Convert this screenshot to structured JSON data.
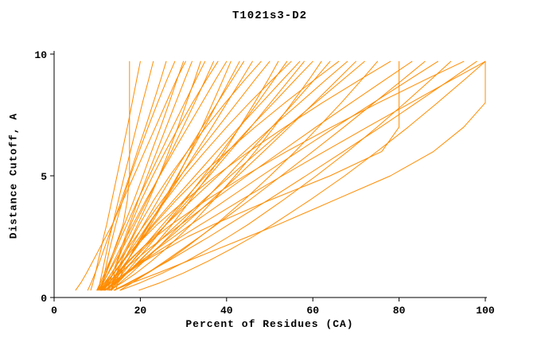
{
  "chart_data": {
    "type": "line",
    "title": "T1021s3-D2",
    "xlabel": "Percent of Residues (CA)",
    "ylabel": "Distance Cutoff, A",
    "xlim": [
      0,
      100
    ],
    "ylim": [
      0,
      10
    ],
    "x_ticks": [
      0,
      20,
      40,
      60,
      80,
      100
    ],
    "y_ticks": [
      0,
      5,
      10
    ],
    "grid": false,
    "legend": "none",
    "line_color": "#ff8c00",
    "axis_color": "#000000",
    "y_samples": [
      0.3,
      0.6,
      1.0,
      1.5,
      2.0,
      2.5,
      3.0,
      4.0,
      5.0,
      6.0,
      7.0,
      8.0,
      9.0,
      9.7
    ],
    "series": [
      {
        "xs": [
          10,
          11,
          12,
          13,
          14,
          15,
          16,
          17,
          17.5,
          17.5,
          17.5,
          17.5,
          17.5,
          17.5
        ]
      },
      {
        "xs": [
          8.5,
          9,
          9.6,
          10.2,
          10.9,
          11.5,
          12.2,
          13.4,
          14.6,
          15.8,
          17,
          18.1,
          19.2,
          20
        ]
      },
      {
        "xs": [
          10.3,
          10.6,
          11.1,
          11.7,
          12.3,
          12.9,
          13.6,
          14.9,
          16.3,
          17.7,
          19.1,
          20.5,
          22,
          23
        ]
      },
      {
        "xs": [
          7.8,
          8.6,
          9.5,
          10.6,
          11.6,
          12.6,
          13.6,
          15.6,
          17.5,
          19.3,
          21.2,
          23,
          24.8,
          26
        ]
      },
      {
        "xs": [
          11.1,
          11.3,
          11.7,
          12.3,
          12.9,
          13.6,
          14.3,
          15.9,
          17.7,
          19.7,
          21.8,
          24,
          26.3,
          28
        ]
      },
      {
        "xs": [
          9.9,
          10.7,
          11.7,
          12.9,
          14.1,
          15.2,
          16.3,
          18.5,
          20.6,
          22.6,
          24.7,
          26.7,
          28.6,
          30
        ]
      },
      {
        "xs": [
          12.4,
          12.9,
          13.6,
          14.6,
          15.5,
          16.5,
          17.5,
          19.5,
          21.6,
          23.8,
          26,
          28.2,
          30.4,
          32
        ]
      },
      {
        "xs": [
          10.3,
          11.7,
          13.3,
          15.1,
          16.6,
          18.1,
          19.4,
          22,
          24.4,
          26.6,
          28.7,
          30.7,
          32.7,
          34
        ]
      },
      {
        "xs": [
          10.6,
          11.2,
          12.1,
          13.2,
          14.4,
          15.6,
          16.9,
          19.4,
          22.1,
          24.8,
          27.5,
          30.3,
          33,
          35
        ]
      },
      {
        "xs": [
          10.2,
          11.3,
          12.6,
          14.2,
          15.8,
          17.3,
          18.7,
          21.6,
          24.4,
          27.2,
          29.9,
          32.6,
          35.2,
          37
        ]
      },
      {
        "xs": [
          13.2,
          13.5,
          14,
          14.8,
          15.8,
          16.8,
          17.8,
          20.2,
          22.9,
          25.8,
          28.9,
          32.1,
          35.5,
          38
        ]
      },
      {
        "xs": [
          10.7,
          11.4,
          12.5,
          13.9,
          15.3,
          16.8,
          18.3,
          21.3,
          24.5,
          27.7,
          31,
          34.3,
          37.6,
          40
        ]
      },
      {
        "xs": [
          10.9,
          12.7,
          14.7,
          16.9,
          18.9,
          20.8,
          22.5,
          25.7,
          28.8,
          31.6,
          34.3,
          36.8,
          39.3,
          41
        ]
      },
      {
        "xs": [
          12.4,
          13.6,
          15.2,
          17,
          18.7,
          20.4,
          22.1,
          25.4,
          28.6,
          31.8,
          34.9,
          37.9,
          40.9,
          43
        ]
      },
      {
        "xs": [
          12.7,
          13.5,
          14.6,
          16.1,
          17.6,
          19.2,
          20.8,
          24.1,
          27.4,
          30.9,
          34.4,
          37.9,
          41.5,
          44
        ]
      },
      {
        "xs": [
          10.6,
          12,
          13.8,
          15.9,
          17.9,
          19.9,
          21.8,
          25.7,
          29.4,
          33,
          36.6,
          40.1,
          43.6,
          46
        ]
      },
      {
        "xs": [
          13.3,
          13.7,
          14.5,
          15.6,
          16.9,
          18.3,
          19.8,
          23.1,
          26.8,
          30.9,
          35.2,
          39.7,
          44.5,
          48
        ]
      },
      {
        "xs": [
          10.9,
          11.9,
          13.3,
          15.2,
          17,
          19,
          21,
          25.1,
          29.3,
          33.6,
          38,
          42.4,
          46.8,
          50
        ]
      },
      {
        "xs": [
          11.9,
          14.3,
          17,
          19.9,
          22.6,
          25,
          27.4,
          31.6,
          35.7,
          39.5,
          43,
          46.5,
          49.8,
          52
        ]
      },
      {
        "xs": [
          12.9,
          14.5,
          16.6,
          19,
          21.4,
          23.7,
          25.9,
          30.4,
          34.7,
          38.9,
          43.1,
          47.2,
          51.2,
          54
        ]
      },
      {
        "xs": [
          14.3,
          14.8,
          15.7,
          17,
          18.5,
          20.2,
          21.9,
          25.9,
          30.2,
          35,
          40,
          45.3,
          50.9,
          55
        ]
      },
      {
        "xs": [
          11,
          12.2,
          13.9,
          16.1,
          18.3,
          20.6,
          22.9,
          27.7,
          32.7,
          37.7,
          42.9,
          48.1,
          53.3,
          57
        ]
      },
      {
        "xs": [
          11.2,
          13,
          15.4,
          18.2,
          20.8,
          23.5,
          26,
          31.1,
          36,
          40.8,
          45.6,
          50.2,
          54.8,
          58
        ]
      },
      {
        "xs": [
          13.1,
          14.3,
          15.9,
          18.2,
          20.4,
          22.8,
          25.2,
          30.1,
          35.1,
          40.3,
          45.5,
          50.9,
          56.2,
          60
        ]
      },
      {
        "xs": [
          12.8,
          15.7,
          19,
          22.6,
          25.9,
          28.9,
          31.8,
          37,
          42,
          46.6,
          51,
          55.2,
          59.3,
          62
        ]
      },
      {
        "xs": [
          13.3,
          15.3,
          17.9,
          20.9,
          23.8,
          26.6,
          29.4,
          34.9,
          40.2,
          45.4,
          50.5,
          55.6,
          60.6,
          64
        ]
      },
      {
        "xs": [
          13.4,
          14.1,
          15.2,
          16.9,
          18.8,
          20.9,
          23.2,
          28.3,
          33.9,
          40.1,
          46.6,
          53.5,
          60.8,
          66
        ]
      },
      {
        "xs": [
          11.3,
          12.7,
          14.8,
          17.5,
          20.2,
          23.1,
          26,
          31.9,
          38,
          44.2,
          50.5,
          57,
          63.4,
          68
        ]
      },
      {
        "xs": [
          11.7,
          14,
          16.9,
          20.4,
          23.7,
          27,
          30.2,
          36.5,
          42.6,
          48.6,
          54.5,
          60.3,
          66,
          70
        ]
      },
      {
        "xs": [
          13.3,
          14.8,
          16.9,
          19.7,
          22.6,
          25.5,
          28.5,
          34.6,
          40.9,
          47.4,
          53.9,
          60.6,
          67.3,
          72
        ]
      },
      {
        "xs": [
          13.9,
          17.5,
          21.7,
          26.2,
          30.2,
          33.9,
          37.5,
          44,
          50.1,
          55.9,
          61.3,
          66.6,
          71.6,
          75
        ]
      },
      {
        "xs": [
          11.5,
          12.4,
          13.8,
          15.9,
          18.4,
          21.1,
          23.9,
          30.4,
          37.5,
          45.2,
          53.5,
          62.2,
          71.4,
          78
        ]
      },
      {
        "xs": [
          12,
          14,
          17,
          21,
          26,
          31,
          37,
          50,
          64,
          76,
          80,
          80,
          80,
          80
        ]
      },
      {
        "xs": [
          10.6,
          12.5,
          15.1,
          18.6,
          22,
          25.7,
          29.4,
          36.9,
          44.7,
          52.7,
          60.7,
          68.9,
          77.2,
          83
        ]
      },
      {
        "xs": [
          15.3,
          18.1,
          21.6,
          25.8,
          29.8,
          33.8,
          37.7,
          45.3,
          52.7,
          60,
          67.2,
          74.2,
          81.2,
          86
        ]
      },
      {
        "xs": [
          11.7,
          13.7,
          16.5,
          20.2,
          23.9,
          27.8,
          31.7,
          39.8,
          48.1,
          56.6,
          65.2,
          74,
          82.8,
          89
        ]
      },
      {
        "xs": [
          15.4,
          19.9,
          25.1,
          30.8,
          35.8,
          40.5,
          45,
          53.1,
          60.8,
          68.1,
          74.9,
          81.4,
          87.7,
          92
        ]
      },
      {
        "xs": [
          11.6,
          12.7,
          14.5,
          17.2,
          20.2,
          23.6,
          27.2,
          35.3,
          44.2,
          53.9,
          64.3,
          75.2,
          86.7,
          95
        ]
      },
      {
        "xs": [
          13.9,
          17.2,
          21.4,
          26.5,
          31.2,
          36,
          40.5,
          49.6,
          58.4,
          67.1,
          75.7,
          84,
          92.3,
          98
        ]
      },
      {
        "xs": [
          11,
          13.3,
          16.5,
          20.7,
          25,
          29.5,
          34,
          43.3,
          52.9,
          62.7,
          72.6,
          82.7,
          92.8,
          100
        ]
      },
      {
        "xs": [
          19.7,
          24.5,
          29.9,
          35.8,
          41.1,
          46.1,
          50.7,
          59.3,
          67.4,
          74.9,
          82.1,
          88.9,
          95.5,
          100
        ]
      },
      {
        "xs": [
          14,
          18,
          24,
          31,
          38,
          45,
          52,
          65,
          78,
          88,
          95,
          100,
          100,
          100
        ]
      },
      {
        "xs": [
          5,
          6.2,
          7.5,
          9,
          10.5,
          12,
          13.5,
          16,
          18.5,
          21,
          23.5,
          26,
          28.5,
          30.5
        ]
      }
    ]
  }
}
